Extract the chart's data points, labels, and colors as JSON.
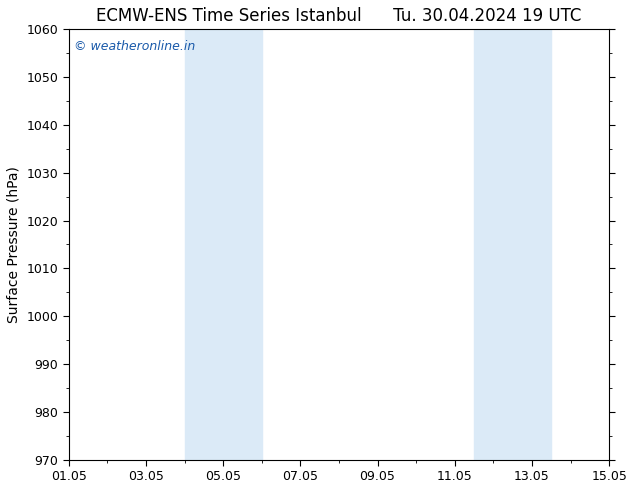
{
  "title": "ECMW-ENS Time Series Istanbul",
  "title2": "Tu. 30.04.2024 19 UTC",
  "ylabel": "Surface Pressure (hPa)",
  "ylim": [
    970,
    1060
  ],
  "yticks": [
    970,
    980,
    990,
    1000,
    1010,
    1020,
    1030,
    1040,
    1050,
    1060
  ],
  "xlim_start": 0,
  "xlim_end": 14,
  "xtick_positions": [
    0,
    2,
    4,
    6,
    8,
    10,
    12,
    14
  ],
  "xtick_labels": [
    "01.05",
    "03.05",
    "05.05",
    "07.05",
    "09.05",
    "11.05",
    "13.05",
    "15.05"
  ],
  "shaded_bands": [
    {
      "x_start": 3.0,
      "x_end": 5.0
    },
    {
      "x_start": 10.5,
      "x_end": 12.5
    }
  ],
  "band_color": "#dbeaf7",
  "background_color": "#ffffff",
  "watermark": "© weatheronline.in",
  "watermark_color": "#1a5aaa",
  "title_fontsize": 12,
  "axis_label_fontsize": 10,
  "tick_fontsize": 9,
  "watermark_fontsize": 9
}
